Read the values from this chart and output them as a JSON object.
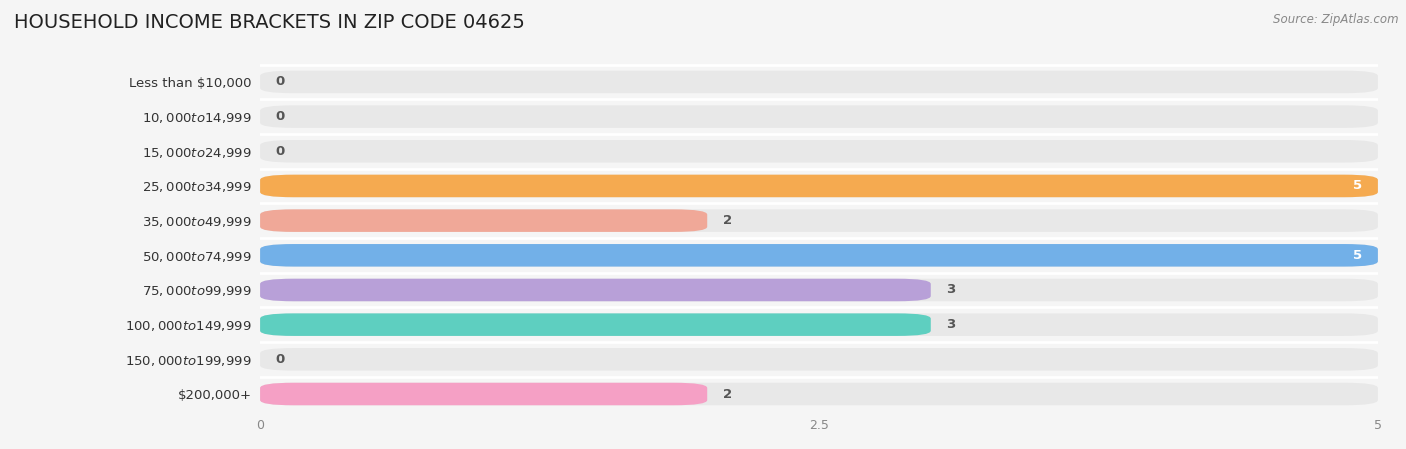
{
  "title": "HOUSEHOLD INCOME BRACKETS IN ZIP CODE 04625",
  "source": "Source: ZipAtlas.com",
  "categories": [
    "Less than $10,000",
    "$10,000 to $14,999",
    "$15,000 to $24,999",
    "$25,000 to $34,999",
    "$35,000 to $49,999",
    "$50,000 to $74,999",
    "$75,000 to $99,999",
    "$100,000 to $149,999",
    "$150,000 to $199,999",
    "$200,000+"
  ],
  "values": [
    0,
    0,
    0,
    5,
    2,
    5,
    3,
    3,
    0,
    2
  ],
  "bar_colors": [
    "#62cece",
    "#a99fd5",
    "#f5a0b5",
    "#f5aa50",
    "#f0a898",
    "#72b0e8",
    "#b8a0d8",
    "#5ecfc0",
    "#a99fd5",
    "#f5a0c5"
  ],
  "background_color": "#f5f5f5",
  "bar_background_color": "#e8e8e8",
  "xlim": [
    0,
    5
  ],
  "xticks": [
    0,
    2.5,
    5
  ],
  "title_fontsize": 14,
  "label_fontsize": 9.5,
  "value_fontsize": 9.5
}
